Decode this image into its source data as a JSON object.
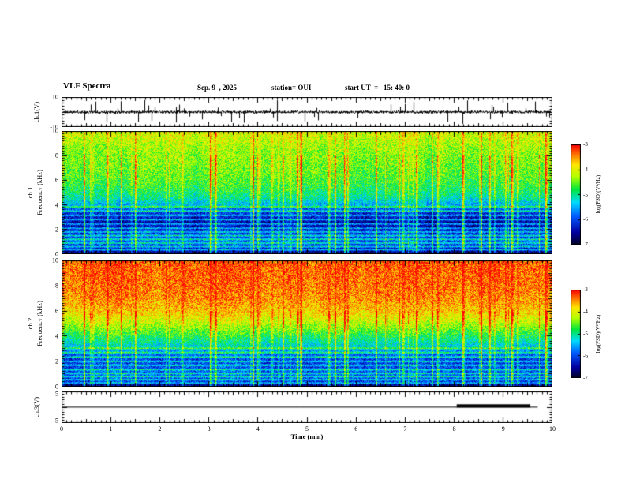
{
  "header": {
    "title": "VLF Spectra",
    "date": "Sep. 9  , 2025",
    "station": "station= OUI",
    "start_ut": "start UT  =   15: 40: 0"
  },
  "x_axis": {
    "label": "Time (min)",
    "min": 0,
    "max": 10,
    "tick_labels": [
      "0",
      "1",
      "2",
      "3",
      "4",
      "5",
      "6",
      "7",
      "8",
      "9",
      "10"
    ]
  },
  "panels": {
    "wave": {
      "ylabel": "ch.1(V)",
      "ymin": -10,
      "ymax": 10,
      "ticks": [
        {
          "v": 10,
          "label": "10"
        },
        {
          "v": -10,
          "label": "-10"
        }
      ]
    },
    "spec1": {
      "ylabel1": "ch.1",
      "ylabel2": "Frequency (kHz)",
      "ymin": 0,
      "ymax": 10,
      "ticks": [
        {
          "v": 10,
          "label": "10"
        },
        {
          "v": 8,
          "label": "8"
        },
        {
          "v": 6,
          "label": "6"
        },
        {
          "v": 4,
          "label": "4"
        },
        {
          "v": 2,
          "label": "2"
        },
        {
          "v": 0,
          "label": "0"
        }
      ]
    },
    "spec2": {
      "ylabel1": "ch.2",
      "ylabel2": "Frequency (kHz)",
      "ymin": 0,
      "ymax": 10,
      "ticks": [
        {
          "v": 10,
          "label": "10"
        },
        {
          "v": 8,
          "label": "8"
        },
        {
          "v": 6,
          "label": "6"
        },
        {
          "v": 4,
          "label": "4"
        },
        {
          "v": 2,
          "label": "2"
        },
        {
          "v": 0,
          "label": "0"
        }
      ]
    },
    "ch3": {
      "ylabel": "ch.3(V)",
      "ymin": -6,
      "ymax": 6,
      "ticks": [
        {
          "v": 5,
          "label": "5"
        },
        {
          "v": -5,
          "label": "-5"
        }
      ]
    }
  },
  "colorbar": {
    "label": "log(PSD)(V²/Hz)",
    "tick_labels": [
      "-3",
      "-4",
      "-5",
      "-6",
      "-7"
    ],
    "zmax": -3,
    "zmin": -7
  },
  "chart_data": [
    {
      "type": "line",
      "name": "ch1_waveform",
      "x_range": [
        0,
        10
      ],
      "y_range": [
        -10,
        10
      ],
      "description": "broadband noise band of about ±1 V with impulsive sferic spikes reaching ±9 V",
      "noise_amp": 0.8,
      "spike_count": 48,
      "spike_min": 2.5,
      "spike_max": 9,
      "seed": 11
    },
    {
      "type": "heatmap",
      "name": "ch1_spectrogram",
      "x_range": [
        0,
        10
      ],
      "y_range": [
        0,
        10
      ],
      "z_range": [
        -7,
        -3
      ],
      "z_label": "log(PSD)(V²/Hz)",
      "freq_profile": [
        [
          0,
          -6.7
        ],
        [
          0.4,
          -6.3
        ],
        [
          0.8,
          -6.0
        ],
        [
          1.2,
          -5.9
        ],
        [
          1.6,
          -6.1
        ],
        [
          2.0,
          -6.3
        ],
        [
          2.6,
          -6.45
        ],
        [
          3.2,
          -6.2
        ],
        [
          3.6,
          -5.9
        ],
        [
          4.0,
          -5.45
        ],
        [
          4.5,
          -5.05
        ],
        [
          5.0,
          -4.85
        ],
        [
          5.5,
          -4.7
        ],
        [
          6.0,
          -4.6
        ],
        [
          6.5,
          -4.5
        ],
        [
          7.0,
          -4.45
        ],
        [
          7.5,
          -4.4
        ],
        [
          8.0,
          -4.35
        ],
        [
          8.5,
          -4.3
        ],
        [
          9.0,
          -4.2
        ],
        [
          9.5,
          -4.1
        ],
        [
          10,
          -4.0
        ]
      ],
      "line_freqs": [
        0.35,
        0.6,
        0.9,
        1.2,
        1.5,
        1.8,
        2.1,
        2.45,
        2.8,
        3.15,
        3.5,
        3.85
      ],
      "line_amp": 0.95,
      "line_width": 0.07,
      "streak_density": 0.1,
      "streak_amp_min": 0.4,
      "streak_amp_max": 1.7,
      "streak_scale": 1.0,
      "streak_hf_gain": 0.5,
      "hf_cut": 8.0,
      "noise_sigma": 0.34,
      "col_mod_amp": 0.5,
      "seed": 101
    },
    {
      "type": "heatmap",
      "name": "ch2_spectrogram",
      "x_range": [
        0,
        10
      ],
      "y_range": [
        0,
        10
      ],
      "z_range": [
        -7,
        -3
      ],
      "z_label": "log(PSD)(V²/Hz)",
      "freq_profile": [
        [
          0,
          -6.6
        ],
        [
          0.4,
          -6.2
        ],
        [
          0.8,
          -5.95
        ],
        [
          1.2,
          -5.95
        ],
        [
          1.6,
          -6.05
        ],
        [
          2.0,
          -6.1
        ],
        [
          2.5,
          -5.9
        ],
        [
          3.0,
          -5.5
        ],
        [
          3.5,
          -5.1
        ],
        [
          4.0,
          -4.8
        ],
        [
          4.5,
          -4.5
        ],
        [
          5.0,
          -4.2
        ],
        [
          5.5,
          -3.95
        ],
        [
          6.0,
          -3.75
        ],
        [
          6.5,
          -3.6
        ],
        [
          7.0,
          -3.5
        ],
        [
          7.5,
          -3.45
        ],
        [
          8.0,
          -3.4
        ],
        [
          9.0,
          -3.35
        ],
        [
          10,
          -3.3
        ]
      ],
      "line_freqs": [
        0.3,
        0.55,
        0.8,
        1.05,
        1.35,
        1.7,
        2.0,
        2.35,
        2.7,
        3.05
      ],
      "line_amp": 0.9,
      "line_width": 0.07,
      "streak_density": 0.1,
      "streak_amp_min": 0.4,
      "streak_amp_max": 1.7,
      "streak_scale": 0.95,
      "streak_hf_gain": 0.35,
      "hf_cut": 6.0,
      "noise_sigma": 0.34,
      "col_mod_amp": 0.5,
      "seed": 202
    },
    {
      "type": "line",
      "name": "ch3_level",
      "x_range": [
        0,
        10
      ],
      "y_range": [
        -6,
        6
      ],
      "baseline": 0.2,
      "line_end": 9.7,
      "event_start": 8.05,
      "event_end": 9.55,
      "event_level": 0.55,
      "event_thickness": 4
    }
  ]
}
